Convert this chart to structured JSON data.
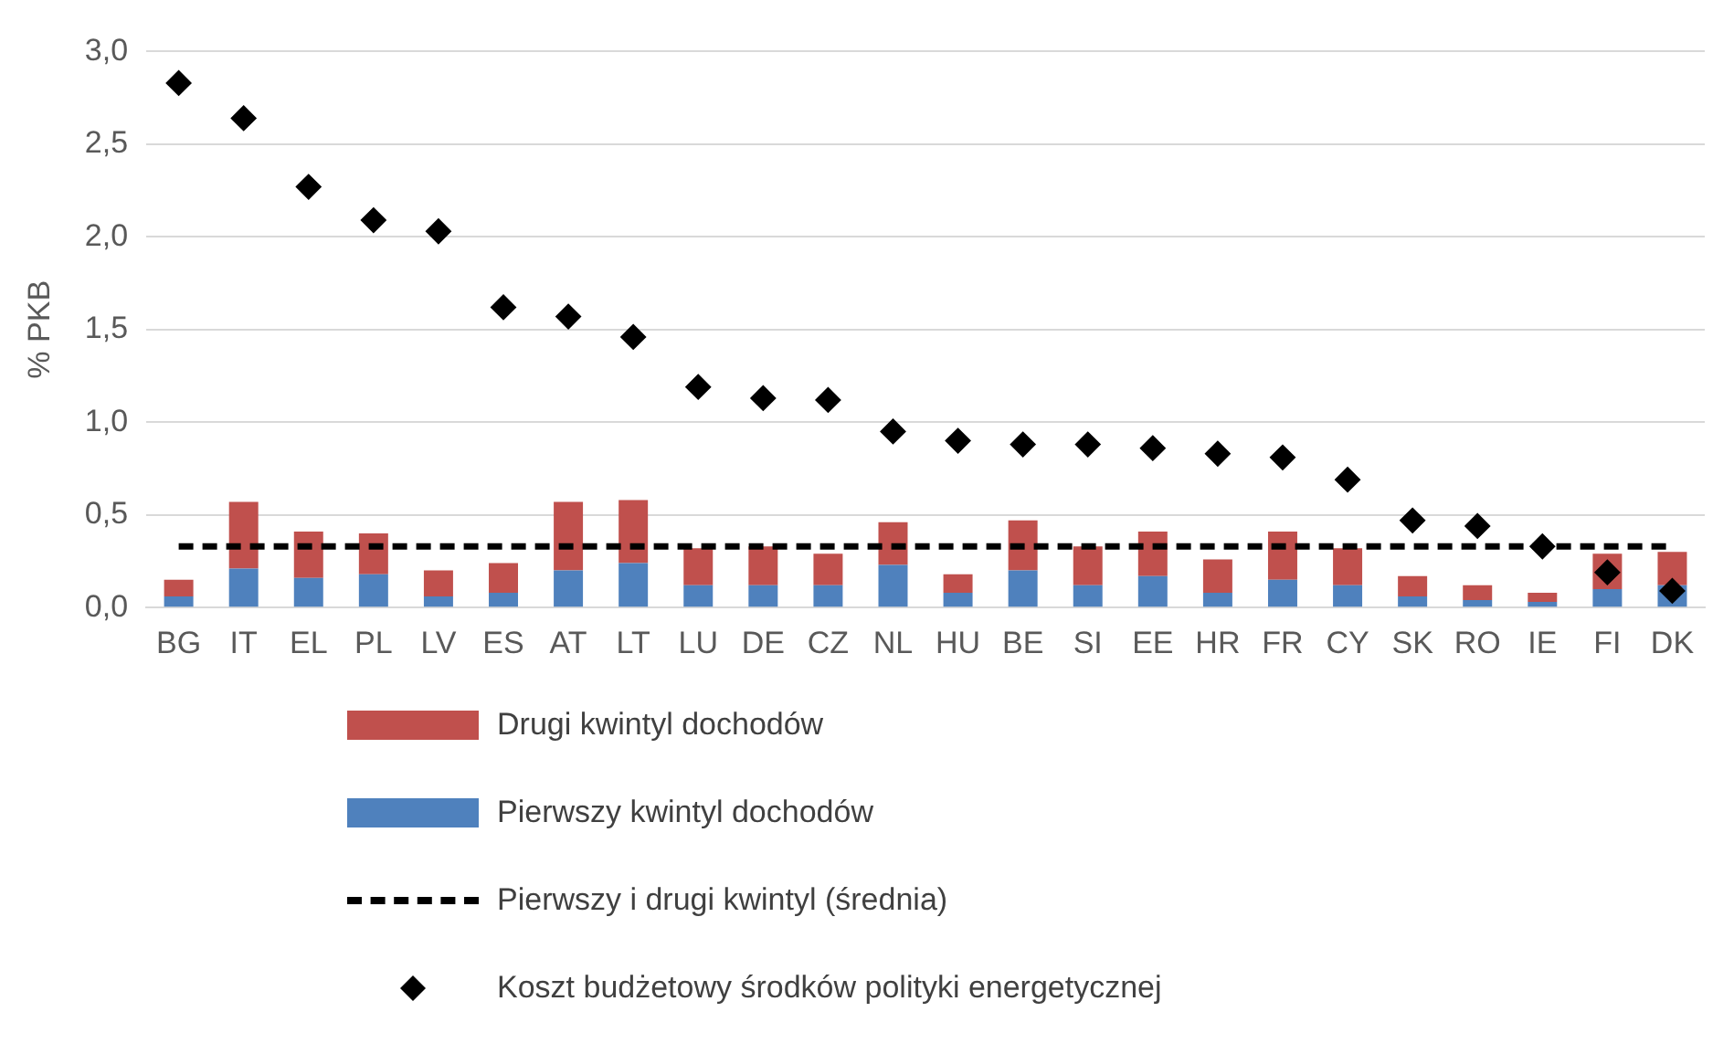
{
  "chart_data": {
    "type": "bar",
    "ylabel": "% PKB",
    "stacked": true,
    "grid": "y",
    "legend": "bottom",
    "categories": [
      "BG",
      "IT",
      "EL",
      "PL",
      "LV",
      "ES",
      "AT",
      "LT",
      "LU",
      "DE",
      "CZ",
      "NL",
      "HU",
      "BE",
      "SI",
      "EE",
      "HR",
      "FR",
      "CY",
      "SK",
      "RO",
      "IE",
      "FI",
      "DK"
    ],
    "ylim": [
      0,
      3
    ],
    "yticks": [
      {
        "value": 0,
        "label": "0,0"
      },
      {
        "value": 0.5,
        "label": "0,5"
      },
      {
        "value": 1,
        "label": "1,0"
      },
      {
        "value": 1.5,
        "label": "1,5"
      },
      {
        "value": 2,
        "label": "2,0"
      },
      {
        "value": 2.5,
        "label": "2,5"
      },
      {
        "value": 3,
        "label": "3,0"
      }
    ],
    "series": [
      {
        "name": "Pierwszy kwintyl dochodów",
        "color": "#4f81bd",
        "values": [
          0.06,
          0.21,
          0.16,
          0.18,
          0.06,
          0.08,
          0.2,
          0.24,
          0.12,
          0.12,
          0.12,
          0.23,
          0.08,
          0.2,
          0.12,
          0.17,
          0.08,
          0.15,
          0.12,
          0.06,
          0.04,
          0.03,
          0.1,
          0.12
        ]
      },
      {
        "name": "Drugi kwintyl dochodów",
        "color": "#c0504d",
        "values": [
          0.09,
          0.36,
          0.25,
          0.22,
          0.14,
          0.16,
          0.37,
          0.34,
          0.2,
          0.21,
          0.17,
          0.23,
          0.1,
          0.27,
          0.21,
          0.24,
          0.18,
          0.26,
          0.2,
          0.11,
          0.08,
          0.05,
          0.19,
          0.18
        ]
      },
      {
        "name": "Pierwszy i drugi kwintyl (średnia)",
        "type": "line",
        "color": "#000000",
        "line_style": "dashed",
        "marker": "none",
        "values": [
          0.33,
          0.33,
          0.33,
          0.33,
          0.33,
          0.33,
          0.33,
          0.33,
          0.33,
          0.33,
          0.33,
          0.33,
          0.33,
          0.33,
          0.33,
          0.33,
          0.33,
          0.33,
          0.33,
          0.33,
          0.33,
          0.33,
          0.33,
          0.33
        ]
      },
      {
        "name": "Koszt budżetowy środków polityki energetycznej",
        "type": "scatter",
        "color": "#000000",
        "marker": "diamond",
        "values": [
          2.83,
          2.64,
          2.27,
          2.09,
          2.03,
          1.62,
          1.57,
          1.46,
          1.19,
          1.13,
          1.12,
          0.95,
          0.9,
          0.88,
          0.88,
          0.86,
          0.83,
          0.81,
          0.69,
          0.47,
          0.44,
          0.33,
          0.19,
          0.09
        ]
      }
    ]
  }
}
